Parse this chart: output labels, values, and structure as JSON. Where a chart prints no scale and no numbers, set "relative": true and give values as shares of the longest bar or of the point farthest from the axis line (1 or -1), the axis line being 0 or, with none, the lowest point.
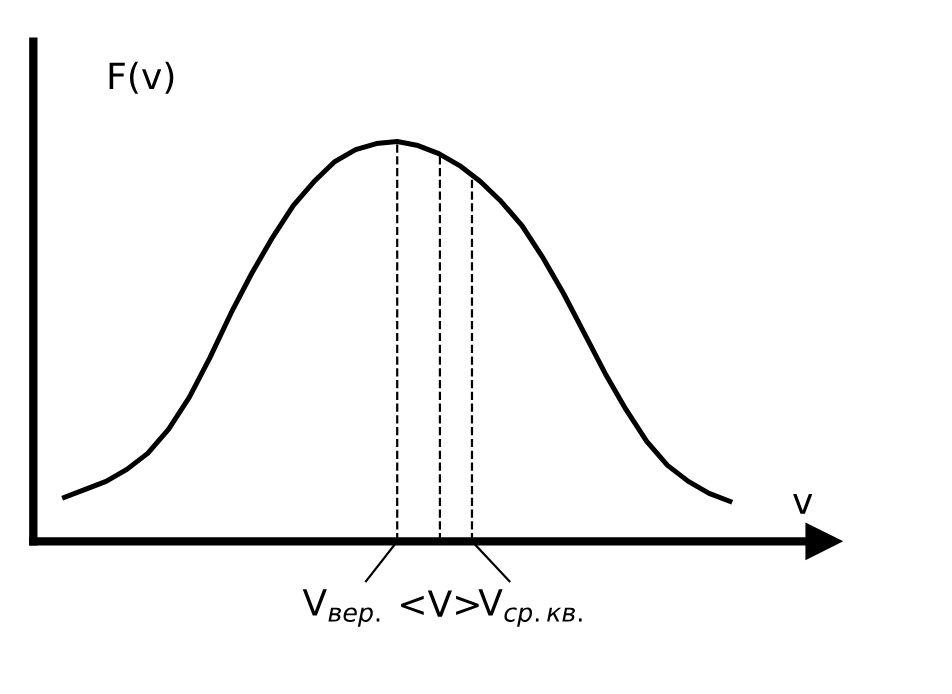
{
  "chart_data": {
    "type": "line",
    "relative": true,
    "ylabel": "F(v)",
    "xlabel": "v",
    "color": "#000000",
    "categories": [
      null,
      null,
      null,
      null,
      null,
      null,
      null,
      null,
      null,
      null,
      null,
      null,
      null,
      null,
      null,
      null,
      null,
      null,
      null,
      null,
      null,
      null,
      null,
      null,
      null,
      null,
      null,
      null,
      null,
      null,
      null,
      null,
      null
    ],
    "values": [
      0.11,
      0.13,
      0.15,
      0.18,
      0.22,
      0.28,
      0.36,
      0.46,
      0.57,
      0.67,
      0.76,
      0.84,
      0.9,
      0.95,
      0.98,
      0.995,
      1.0,
      0.99,
      0.97,
      0.94,
      0.9,
      0.85,
      0.79,
      0.71,
      0.62,
      0.52,
      0.42,
      0.33,
      0.25,
      0.19,
      0.15,
      0.12,
      0.1
    ],
    "annotations": [
      "V$_{вер.}$",
      "<V>",
      "V$_{ср.кв.}$"
    ],
    "marker": "none",
    "line_style": "solid"
  }
}
